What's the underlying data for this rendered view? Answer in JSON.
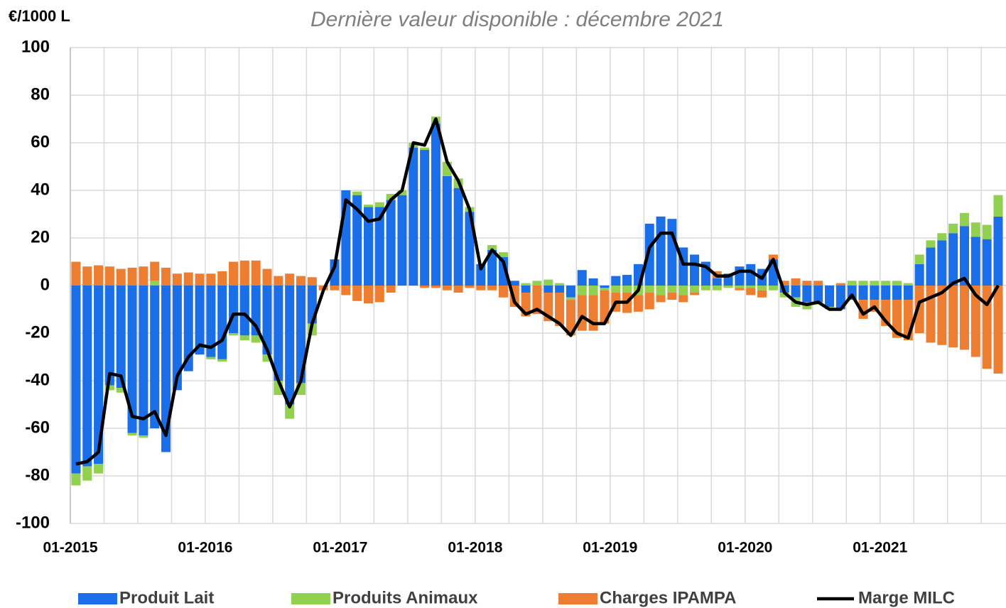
{
  "chart_data": {
    "type": "bar",
    "title": "Dernière valeur disponible : décembre 2021",
    "y_label": "€/1000 L",
    "categories": [
      "01-2015",
      null,
      null,
      null,
      null,
      null,
      null,
      null,
      null,
      null,
      null,
      null,
      "01-2016",
      null,
      null,
      null,
      null,
      null,
      null,
      null,
      null,
      null,
      null,
      null,
      "01-2017",
      null,
      null,
      null,
      null,
      null,
      null,
      null,
      null,
      null,
      null,
      null,
      "01-2018",
      null,
      null,
      null,
      null,
      null,
      null,
      null,
      null,
      null,
      null,
      null,
      "01-2019",
      null,
      null,
      null,
      null,
      null,
      null,
      null,
      null,
      null,
      null,
      null,
      "01-2020",
      null,
      null,
      null,
      null,
      null,
      null,
      null,
      null,
      null,
      null,
      null,
      "01-2021",
      null,
      null,
      null,
      null,
      null,
      null,
      null,
      null,
      null,
      null
    ],
    "series": [
      {
        "name": "Produit Lait",
        "color": "#1a6ee8",
        "values": [
          -79,
          -76,
          -75,
          -42,
          -43,
          -62,
          -63,
          -60,
          -70,
          -44,
          -36,
          -29,
          -30,
          -31,
          -20,
          -21,
          -21,
          -29,
          -40,
          -50,
          -41,
          -16,
          0,
          11,
          40,
          38,
          33,
          33,
          36,
          38,
          58,
          57,
          68,
          46,
          41,
          31,
          9,
          15,
          12,
          2,
          -3,
          0,
          -3,
          -3,
          -5,
          6.5,
          3,
          -1,
          4,
          4.5,
          9,
          26,
          29,
          28,
          16,
          13,
          10,
          3,
          5,
          8,
          9,
          7,
          11,
          -3,
          -5,
          -7,
          -7,
          -9,
          -10,
          -6,
          -6,
          -6,
          -6,
          -6,
          -6,
          9,
          16,
          19,
          22,
          25,
          20.5,
          19.5,
          29
        ]
      },
      {
        "name": "Produits Animaux",
        "color": "#92d050",
        "values": [
          -5,
          -6,
          -4,
          -2,
          -2,
          -1,
          -1,
          2,
          0,
          0,
          0,
          0,
          -1,
          -1,
          -1,
          -2,
          -3,
          -3,
          -6,
          -6,
          -5,
          -5,
          0,
          0,
          0,
          1.5,
          1,
          2,
          2.5,
          2,
          2,
          1,
          3,
          6,
          4,
          2,
          0,
          2,
          2,
          0,
          1,
          2,
          2.5,
          1,
          -1,
          -4,
          -4,
          -1,
          -3,
          -3,
          -4,
          -3,
          -4,
          -3,
          -4,
          -3,
          -2,
          -2,
          -1,
          -1,
          -1,
          -2,
          -2,
          -2,
          -4,
          -3,
          -1,
          -1,
          0,
          2,
          2,
          2,
          2,
          2,
          1,
          4,
          3,
          3,
          4,
          5.5,
          6,
          6,
          9
        ]
      },
      {
        "name": "Charges IPAMPA",
        "color": "#ed7d31",
        "values": [
          10,
          8,
          8.5,
          8,
          7,
          7.5,
          8,
          8,
          7.5,
          5,
          5.5,
          5,
          5,
          6,
          10,
          10.5,
          10.5,
          7,
          4,
          5,
          4,
          3.5,
          -2,
          -2,
          -4,
          -6.5,
          -7.5,
          -7,
          -3,
          0,
          0,
          -1,
          -1,
          -2,
          -3,
          -1,
          -2,
          -2,
          -5,
          -9,
          -10,
          -12,
          -12,
          -14,
          -15,
          -15,
          -15,
          -14,
          -8,
          -8.5,
          -7,
          -7,
          -3,
          -3,
          -3,
          -1,
          0,
          3,
          0,
          -1,
          -3,
          -3,
          2,
          2,
          3,
          2,
          2,
          0,
          1,
          0,
          -8,
          -5,
          -11,
          -16,
          -17,
          -20,
          -24,
          -25,
          -26,
          -27,
          -30,
          -35,
          -37
        ]
      },
      {
        "name": "Marge MILC",
        "type": "line",
        "color": "#000000",
        "values": [
          -75,
          -74,
          -70,
          -37,
          -38,
          -55,
          -56,
          -53,
          -63,
          -38,
          -30,
          -25,
          -26,
          -23,
          -12,
          -12,
          -17,
          -27,
          -40,
          -51,
          -40,
          -16,
          -2,
          8,
          36,
          32,
          27,
          28,
          36,
          40,
          60,
          59,
          70,
          52,
          44,
          32,
          7,
          15,
          10,
          -7,
          -12,
          -10,
          -13,
          -16,
          -21,
          -13,
          -16,
          -16,
          -7,
          -7,
          -2,
          16,
          22,
          22,
          9,
          9,
          8,
          4,
          4,
          6,
          6,
          3,
          11,
          -3,
          -7,
          -8,
          -7,
          -10,
          -10,
          -4,
          -12,
          -9,
          -15,
          -20,
          -22,
          -7,
          -5,
          -3,
          1,
          3,
          -4,
          -8,
          0
        ]
      }
    ],
    "ylim": [
      -100,
      100
    ],
    "yticks": [
      -100,
      -80,
      -60,
      -40,
      -20,
      0,
      20,
      40,
      60,
      80,
      100
    ],
    "grid": true
  }
}
